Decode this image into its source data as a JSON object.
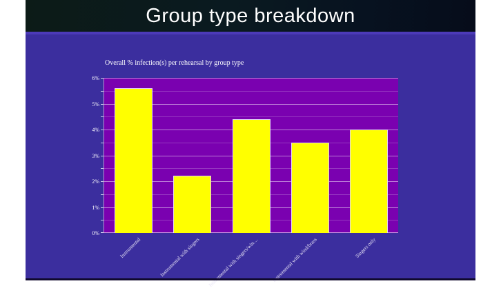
{
  "slide": {
    "title": "Group type breakdown",
    "title_bar_bg": "#081420",
    "separator_color": "#4c3ab8",
    "body_bg": "#3b2e9e",
    "bottom_strip_color": "#10092e",
    "page_margin_color": "#ffffff"
  },
  "chart_data": {
    "type": "bar",
    "title": "Overall % infection(s) per rehearsal by group type",
    "categories": [
      "Instrumental",
      "Instrumental with singers",
      "Instrumental with singers/win…",
      "Instrumental with wind/brass",
      "Singers only"
    ],
    "values": [
      5.6,
      2.2,
      4.4,
      3.5,
      4.0
    ],
    "unit": "%",
    "xlabel": "",
    "ylabel": "",
    "ylim": [
      0,
      6
    ],
    "ytick_step": 1,
    "yminor_step": 0.5,
    "ytick_labels": [
      "0%",
      "1%",
      "2%",
      "3%",
      "4%",
      "5%",
      "6%"
    ],
    "grid": true,
    "legend": false,
    "colors": {
      "plot_bg": "#7a01b0",
      "bar_fill": "#ffff00",
      "bar_border": "#e3d6f2",
      "grid_major": "rgba(255,255,255,0.50)",
      "grid_minor": "rgba(255,255,255,0.22)",
      "label_color": "#ffffff"
    }
  }
}
